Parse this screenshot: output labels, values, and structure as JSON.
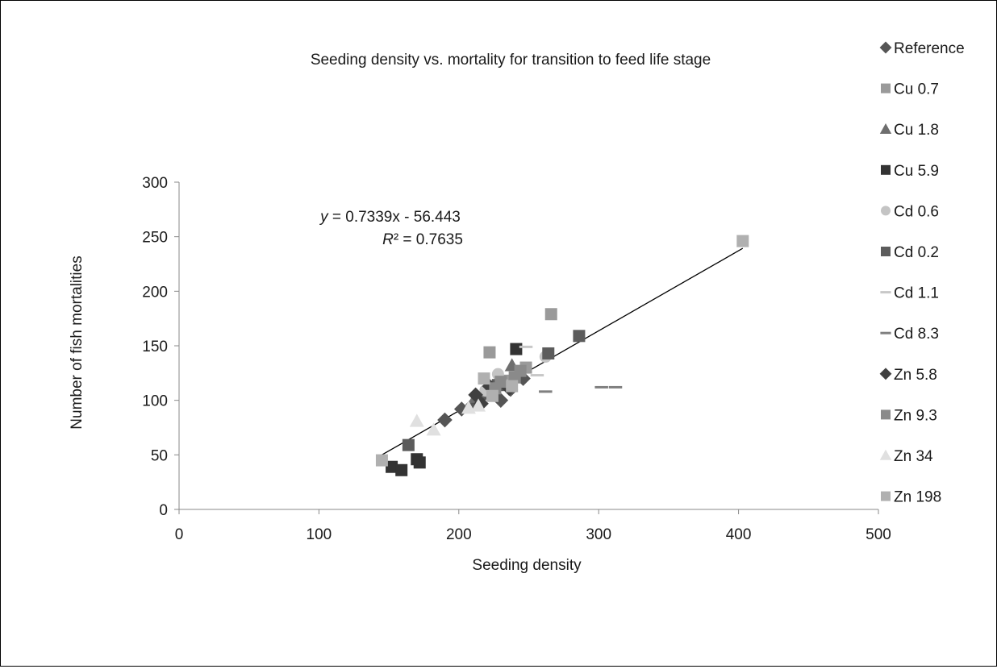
{
  "chart_data": {
    "type": "scatter",
    "title": "Seeding density vs. mortality for transition to feed life stage",
    "xlabel": "Seeding density",
    "ylabel": "Number of fish mortalities",
    "xlim": [
      0,
      500
    ],
    "ylim": [
      0,
      300
    ],
    "xticks": [
      "0",
      "100",
      "200",
      "300",
      "400",
      "500"
    ],
    "yticks": [
      "0",
      "50",
      "100",
      "150",
      "200",
      "250",
      "300"
    ],
    "grid": false,
    "legend_position": "right",
    "trendline": {
      "type": "linear",
      "slope": 0.7339,
      "intercept": -56.443,
      "x_range": [
        145,
        403
      ],
      "equation_var": "y",
      "equation_rest": " = 0.7339x - 56.443",
      "r2_var": "R",
      "r2_rest": "² = 0.7635"
    },
    "series": [
      {
        "name": "Reference",
        "marker": "diamond",
        "color": "#555555",
        "points": [
          [
            190,
            82
          ],
          [
            202,
            92
          ],
          [
            210,
            96
          ],
          [
            216,
            103
          ],
          [
            225,
            106
          ],
          [
            230,
            100
          ],
          [
            237,
            110
          ],
          [
            246,
            120
          ]
        ]
      },
      {
        "name": "Cu 0.7",
        "marker": "square",
        "color": "#9a9a9a",
        "points": [
          [
            222,
            144
          ],
          [
            266,
            179
          ],
          [
            236,
            118
          ],
          [
            248,
            130
          ]
        ]
      },
      {
        "name": "Cu 1.8",
        "marker": "triangle",
        "color": "#6e6e6e",
        "points": [
          [
            212,
            103
          ],
          [
            238,
            132
          ],
          [
            226,
            114
          ],
          [
            218,
            108
          ]
        ]
      },
      {
        "name": "Cu 5.9",
        "marker": "square",
        "color": "#333333",
        "points": [
          [
            152,
            39
          ],
          [
            159,
            36
          ],
          [
            170,
            46
          ],
          [
            172,
            43
          ],
          [
            241,
            147
          ]
        ]
      },
      {
        "name": "Cd 0.6",
        "marker": "circle",
        "color": "#c4c4c4",
        "points": [
          [
            228,
            124
          ],
          [
            262,
            140
          ],
          [
            232,
            115
          ],
          [
            219,
            109
          ]
        ]
      },
      {
        "name": "Cd 0.2",
        "marker": "square",
        "color": "#5c5c5c",
        "points": [
          [
            164,
            59
          ],
          [
            264,
            143
          ],
          [
            286,
            159
          ],
          [
            228,
            114
          ]
        ]
      },
      {
        "name": "Cd 1.1",
        "marker": "dash",
        "color": "#c8c8c8",
        "points": [
          [
            248,
            149
          ],
          [
            256,
            123
          ]
        ]
      },
      {
        "name": "Cd 8.3",
        "marker": "dash",
        "color": "#808080",
        "points": [
          [
            262,
            108
          ],
          [
            302,
            112
          ],
          [
            312,
            112
          ]
        ]
      },
      {
        "name": "Zn 5.8",
        "marker": "diamond",
        "color": "#404040",
        "points": [
          [
            216,
            97
          ],
          [
            222,
            113
          ],
          [
            236,
            111
          ],
          [
            212,
            105
          ]
        ]
      },
      {
        "name": "Zn 9.3",
        "marker": "square",
        "color": "#8a8a8a",
        "points": [
          [
            226,
            111
          ],
          [
            240,
            121
          ],
          [
            244,
            127
          ],
          [
            230,
            117
          ]
        ]
      },
      {
        "name": "Zn 34",
        "marker": "triangle",
        "color": "#e0e0e0",
        "points": [
          [
            170,
            81
          ],
          [
            182,
            73
          ],
          [
            207,
            93
          ],
          [
            214,
            95
          ]
        ]
      },
      {
        "name": "Zn 198",
        "marker": "square",
        "color": "#b0b0b0",
        "points": [
          [
            145,
            45
          ],
          [
            218,
            120
          ],
          [
            403,
            246
          ],
          [
            238,
            113
          ],
          [
            224,
            104
          ]
        ]
      }
    ]
  }
}
